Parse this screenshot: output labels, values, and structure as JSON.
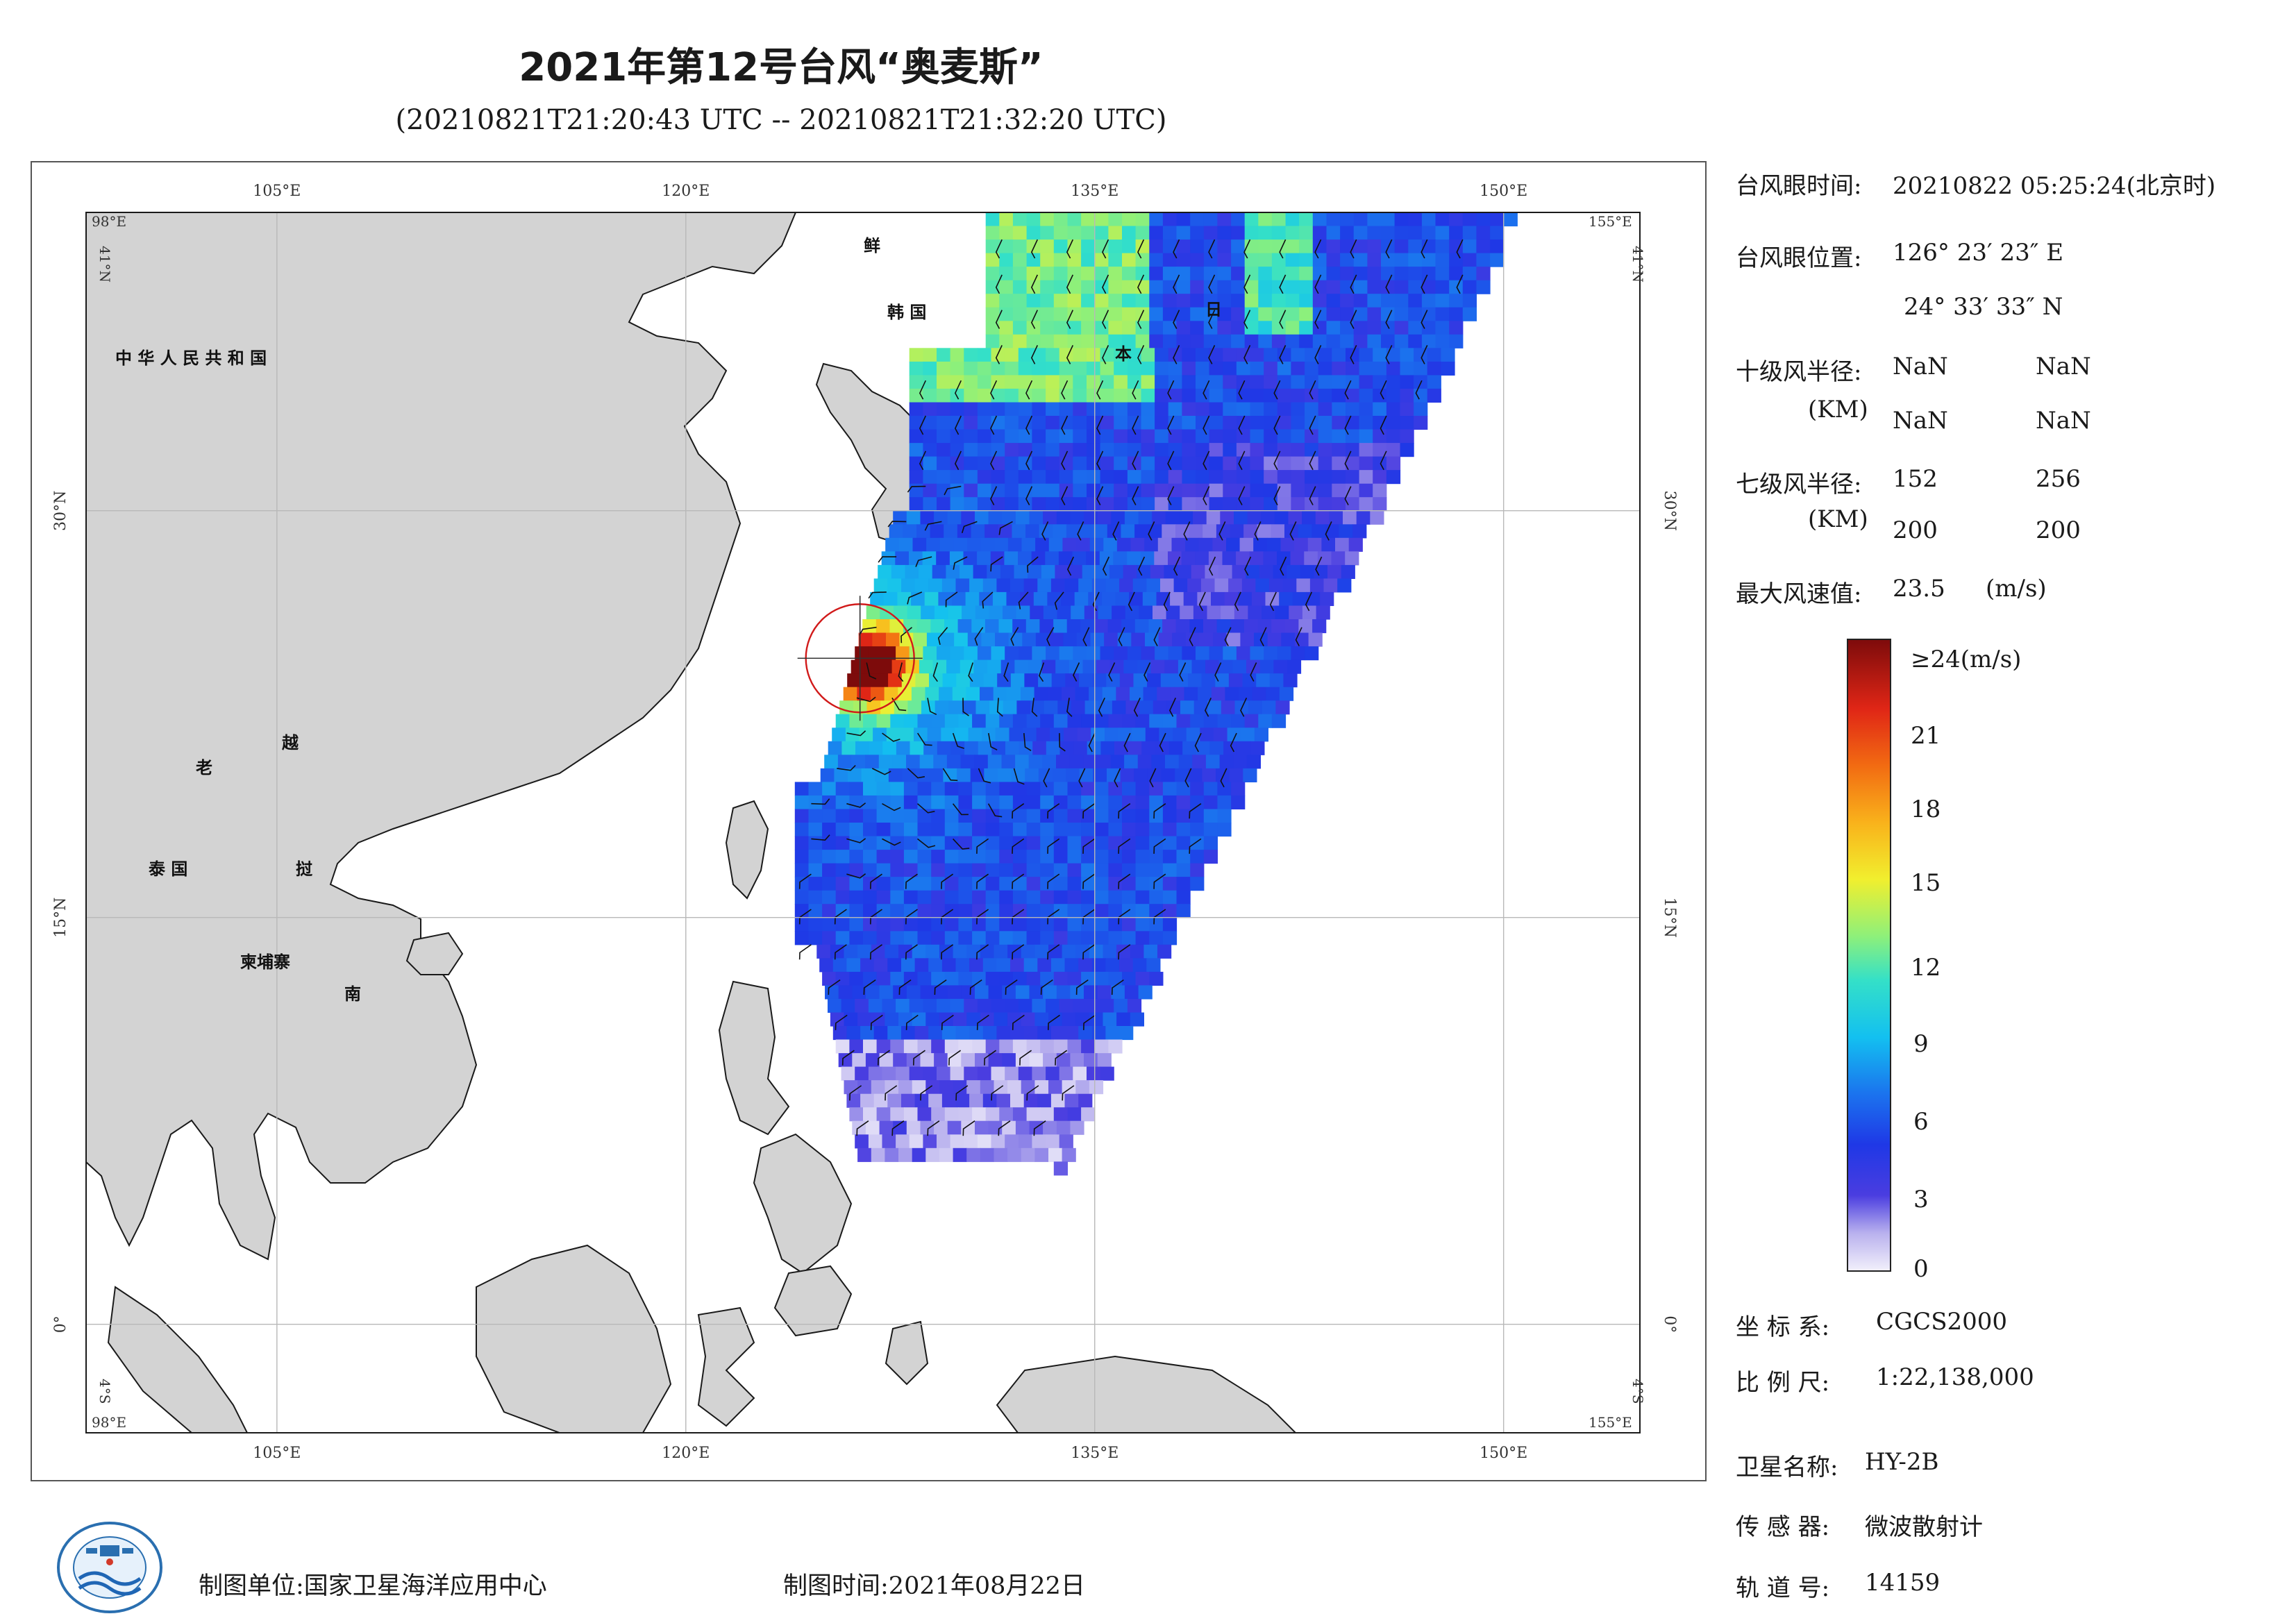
{
  "title": "2021年第12号台风“奥麦斯”",
  "subtitle": "(20210821T21:20:43 UTC -- 20210821T21:32:20 UTC)",
  "map": {
    "lon_ticks": [
      "105°E",
      "120°E",
      "135°E",
      "150°E"
    ],
    "lat_ticks": [
      "30°N",
      "15°N",
      "0°"
    ],
    "corner_labels": {
      "top_left_lon": "98°E",
      "top_left_lat": "41°N",
      "top_right_lon": "155°E",
      "top_right_lat": "41°N",
      "bottom_left_lon": "98°E",
      "bottom_left_lat": "4°S",
      "bottom_right_lon": "155°E",
      "bottom_right_lat": "4°S"
    },
    "country_labels": {
      "china": "中 华 人 民 共 和 国",
      "korea_n": "鲜",
      "korea_s": "韩 国",
      "japan_1": "日",
      "japan_2": "本",
      "laos": "老",
      "vietnam_1": "越",
      "vietnam_2": "南",
      "thailand": "泰 国",
      "cambodia": "柬埔寨",
      "vietnam_mid": "挝"
    },
    "land_color": "#d3d3d3",
    "sea_color": "#ffffff",
    "typhoon_eye": {
      "lon": 126.39,
      "lat": 24.56
    }
  },
  "info": {
    "eye_time_label": "台风眼时间:",
    "eye_time_value": "20210822 05:25:24(北京时)",
    "eye_pos_label": "台风眼位置:",
    "eye_lon": "126° 23′ 23″ E",
    "eye_lat": "24° 33′ 33″ N",
    "r10_label": "十级风半径:",
    "r10_unit": "(KM)",
    "r10_values": [
      "NaN",
      "NaN",
      "NaN",
      "NaN"
    ],
    "r7_label": "七级风半径:",
    "r7_unit": "(KM)",
    "r7_values": [
      "152",
      "256",
      "200",
      "200"
    ],
    "max_wind_label": "最大风速值:",
    "max_wind_value": "23.5",
    "max_wind_unit": "(m/s)",
    "colorbar_top_label": "≥24(m/s)",
    "colorbar_ticks": [
      "21",
      "18",
      "15",
      "12",
      "9",
      "6",
      "3",
      "0"
    ],
    "crs_label": "坐 标 系:",
    "crs_value": "CGCS2000",
    "scale_label": "比 例 尺:",
    "scale_value": "1:22,138,000",
    "sat_label": "卫星名称:",
    "sat_value": "HY-2B",
    "sensor_label": "传 感 器:",
    "sensor_value": "微波散射计",
    "orbit_label": "轨 道 号:",
    "orbit_value": "14159"
  },
  "footer": {
    "unit_label": "制图单位:",
    "unit_value": "国家卫星海洋应用中心",
    "date_label": "制图时间:",
    "date_value": "2021年08月22日"
  }
}
